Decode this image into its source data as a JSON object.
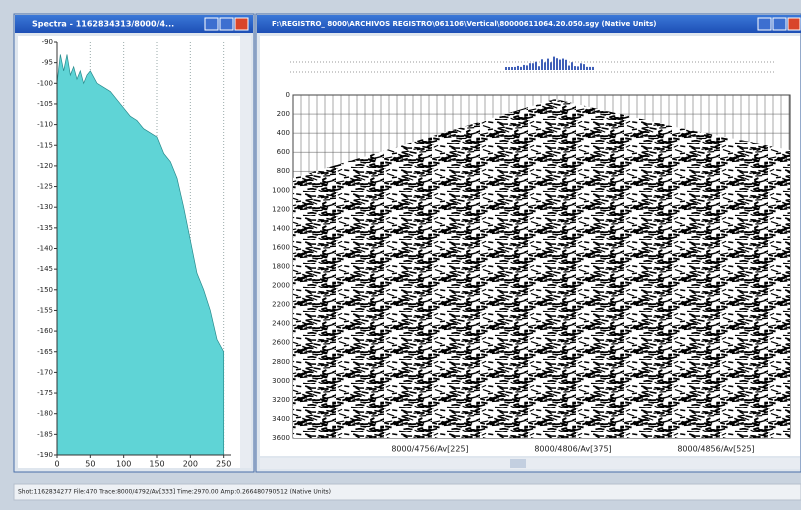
{
  "spectrum": {
    "window_title": "Spectra - 1162834313/8000/4...",
    "chart": {
      "type": "area",
      "color": "#5fd4d6",
      "x": [
        0,
        5,
        10,
        15,
        20,
        25,
        30,
        35,
        40,
        45,
        50,
        60,
        70,
        80,
        90,
        100,
        110,
        120,
        130,
        140,
        150,
        160,
        170,
        180,
        190,
        200,
        210,
        220,
        230,
        240,
        250
      ],
      "values": [
        -100,
        -93,
        -97,
        -93,
        -98,
        -96,
        -99,
        -97,
        -100,
        -98,
        -97,
        -100,
        -101,
        -102,
        -104,
        -106,
        -108,
        -109,
        -111,
        -112,
        -113,
        -117,
        -119,
        -123,
        -130,
        -138,
        -146,
        -150,
        -155,
        -162,
        -165
      ],
      "xlim": [
        0,
        255
      ],
      "ylim": [
        -90,
        -190
      ],
      "xticks": [
        0,
        50,
        100,
        150,
        200,
        250
      ],
      "yticks": [
        -90,
        -95,
        -100,
        -105,
        -110,
        -115,
        -120,
        -125,
        -130,
        -135,
        -140,
        -145,
        -150,
        -155,
        -160,
        -165,
        -170,
        -175,
        -180,
        -185,
        -190
      ],
      "grid": true
    }
  },
  "seismic": {
    "window_title": "F:\\REGISTRO_ 8000\\ARCHIVOS REGISTRO\\061106\\Vertical\\80000611064.20.050.sgy (Native Units)",
    "ylim": [
      0,
      3600
    ],
    "yticks": [
      0,
      200,
      400,
      600,
      800,
      1000,
      1200,
      1400,
      1600,
      1800,
      2000,
      2200,
      2400,
      2600,
      2800,
      3000,
      3200,
      3400,
      3600
    ],
    "trace_labels": [
      "8000/4756/Av[225]",
      "8000/4806/Av[375]",
      "8000/4856/Av[525]"
    ]
  },
  "status_bar": "Shot:1162834277 File:470 Trace:8000/4792/Av[333] Time:2970.00 Amp:0.266480790512 (Native Units)"
}
